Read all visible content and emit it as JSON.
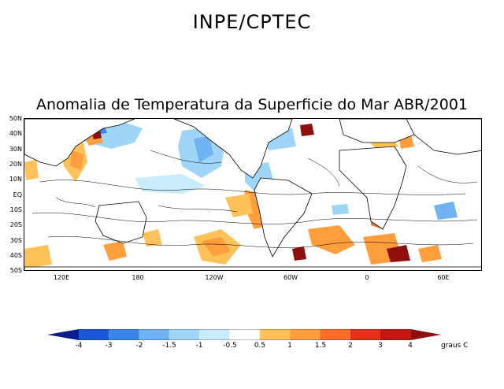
{
  "header": {
    "title": "INPE/CPTEC"
  },
  "map": {
    "title": "Anomalia de Temperatura da Superficie do Mar ABR/2001",
    "lat_labels": [
      "50N",
      "40N",
      "30N",
      "20N",
      "10N",
      "EQ",
      "10S",
      "20S",
      "30S",
      "40S",
      "50S"
    ],
    "lon_labels": [
      "120E",
      "180",
      "120W",
      "60W",
      "0",
      "60E"
    ]
  },
  "legend": {
    "bins": [
      {
        "color": "#0b1c8f"
      },
      {
        "color": "#1c57d8"
      },
      {
        "color": "#3b85e8"
      },
      {
        "color": "#6fb3f2"
      },
      {
        "color": "#9fd5f6"
      },
      {
        "color": "#c9ecfa"
      },
      {
        "color": "#ffffff"
      },
      {
        "color": "#ffc25a"
      },
      {
        "color": "#ff9e3d"
      },
      {
        "color": "#fb6b2a"
      },
      {
        "color": "#e6301c"
      },
      {
        "color": "#c41712"
      },
      {
        "color": "#8f0e0e"
      }
    ],
    "tick_labels": [
      "-4",
      "-3",
      "-2",
      "-1.5",
      "-1",
      "-0.5",
      "0.5",
      "1",
      "1.5",
      "2",
      "3",
      "4"
    ],
    "units": "graus C"
  }
}
